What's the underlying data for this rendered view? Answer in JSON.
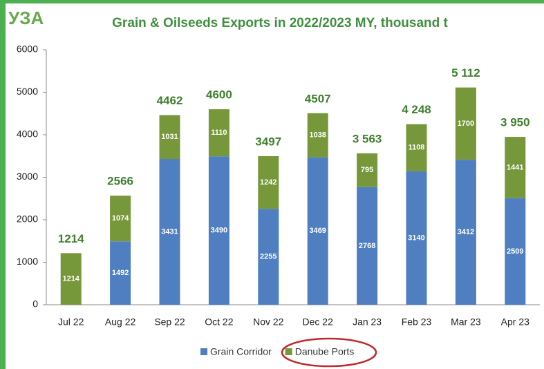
{
  "logo": "УЗА",
  "chart_data": {
    "type": "stacked_bar",
    "title": "Grain & Oilseeds Exports in 2022/2023 MY, thousand t",
    "categories": [
      "Jul 22",
      "Aug 22",
      "Sep 22",
      "Oct 22",
      "Nov 22",
      "Dec 22",
      "Jan 23",
      "Feb 23",
      "Mar 23",
      "Apr 23"
    ],
    "series": [
      {
        "name": "Grain Corridor",
        "color": "#4f7fc0",
        "values": [
          null,
          1492,
          3431,
          3490,
          2255,
          3469,
          2768,
          3140,
          3412,
          2509
        ]
      },
      {
        "name": "Danube Ports",
        "color": "#76983b",
        "values": [
          1214,
          1074,
          1031,
          1110,
          1242,
          1038,
          795,
          1108,
          1700,
          1441
        ]
      }
    ],
    "totals": [
      1214,
      2566,
      4462,
      4600,
      3497,
      4507,
      3563,
      4248,
      5112,
      3950
    ],
    "total_labels": [
      "1214",
      "2566",
      "4462",
      "4600",
      "3497",
      "4507",
      "3 563",
      "4 248",
      "5 112",
      "3 950"
    ],
    "ylim": [
      0,
      6000
    ],
    "yticks": [
      0,
      1000,
      2000,
      3000,
      4000,
      5000,
      6000
    ],
    "legend": "bottom"
  }
}
